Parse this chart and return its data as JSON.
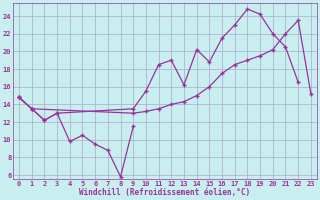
{
  "xlabel": "Windchill (Refroidissement éolien,°C)",
  "bg_color": "#c8eef0",
  "line_color": "#993399",
  "grid_color": "#aaaacc",
  "xlim": [
    -0.5,
    23.5
  ],
  "ylim": [
    5.5,
    25.5
  ],
  "xticks": [
    0,
    1,
    2,
    3,
    4,
    5,
    6,
    7,
    8,
    9,
    10,
    11,
    12,
    13,
    14,
    15,
    16,
    17,
    18,
    19,
    20,
    21,
    22,
    23
  ],
  "yticks": [
    6,
    8,
    10,
    12,
    14,
    16,
    18,
    20,
    22,
    24
  ],
  "line1_x": [
    0,
    1,
    2,
    3,
    4,
    5,
    6,
    7,
    8,
    9
  ],
  "line1_y": [
    14.8,
    13.5,
    12.2,
    13.0,
    9.8,
    10.5,
    9.5,
    8.8,
    5.8,
    11.5
  ],
  "line2_x": [
    0,
    1,
    2,
    3,
    9,
    10,
    11,
    12,
    13,
    14,
    15,
    16,
    17,
    18,
    19,
    20,
    21,
    22
  ],
  "line2_y": [
    14.8,
    13.5,
    12.2,
    13.0,
    13.5,
    15.5,
    18.5,
    19.0,
    16.2,
    20.2,
    18.8,
    21.5,
    23.0,
    24.8,
    24.2,
    22.0,
    20.5,
    16.5
  ],
  "line3_x": [
    0,
    1,
    9,
    10,
    11,
    12,
    13,
    14,
    15,
    16,
    17,
    18,
    19,
    20,
    21,
    22,
    23
  ],
  "line3_y": [
    14.8,
    13.5,
    13.0,
    13.2,
    13.5,
    14.0,
    14.3,
    15.0,
    16.0,
    17.5,
    18.5,
    19.0,
    19.5,
    20.2,
    22.0,
    23.5,
    15.2
  ]
}
